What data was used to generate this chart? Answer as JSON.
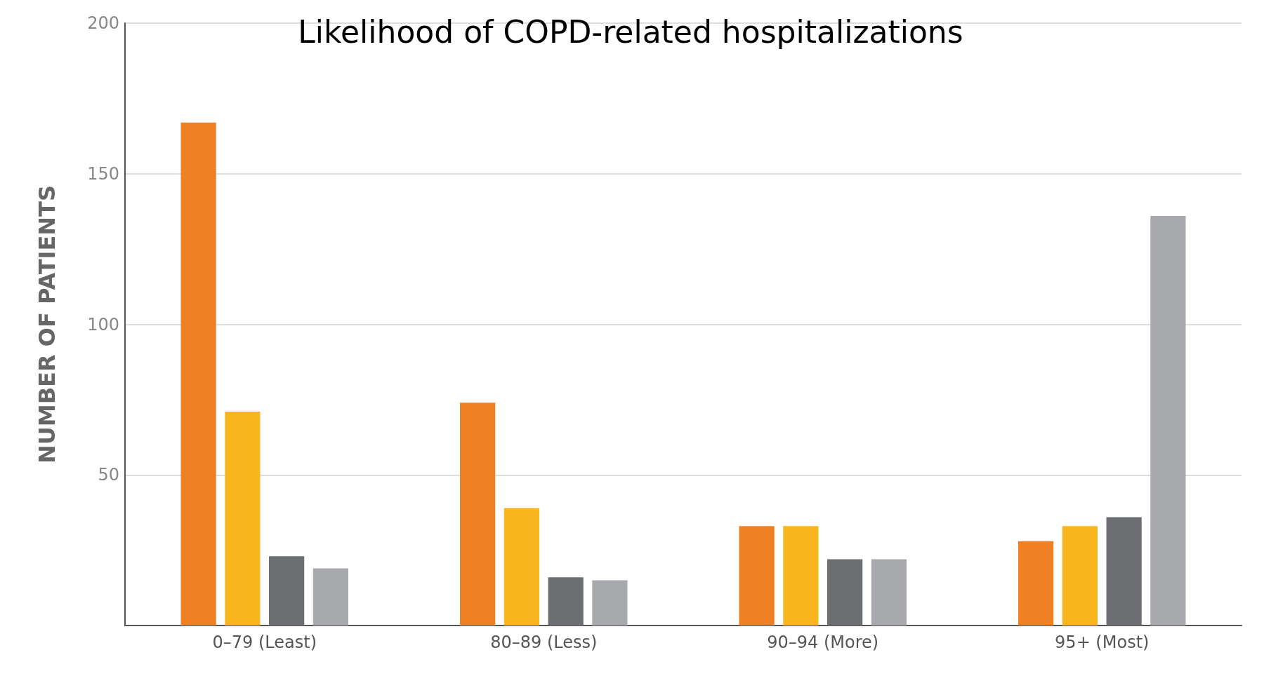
{
  "chart_data": {
    "type": "bar",
    "title": "Likelihood of COPD-related hospitalizations",
    "ylabel": "NUMBER OF PATIENTS",
    "categories": [
      "0–79 (Least)",
      "80–89 (Less)",
      "90–94 (More)",
      "95+ (Most)"
    ],
    "series": [
      {
        "color": "#f08024",
        "values": [
          167,
          74,
          33,
          28
        ]
      },
      {
        "color": "#f9b51d",
        "values": [
          71,
          39,
          33,
          33
        ]
      },
      {
        "color": "#6d6e71",
        "values": [
          23,
          16,
          22,
          36
        ]
      },
      {
        "color": "#a7a9ac",
        "values": [
          19,
          15,
          22,
          136
        ]
      }
    ],
    "ylim": [
      0,
      200
    ],
    "yticks": [
      50,
      100,
      150,
      200
    ],
    "grid": "y"
  }
}
